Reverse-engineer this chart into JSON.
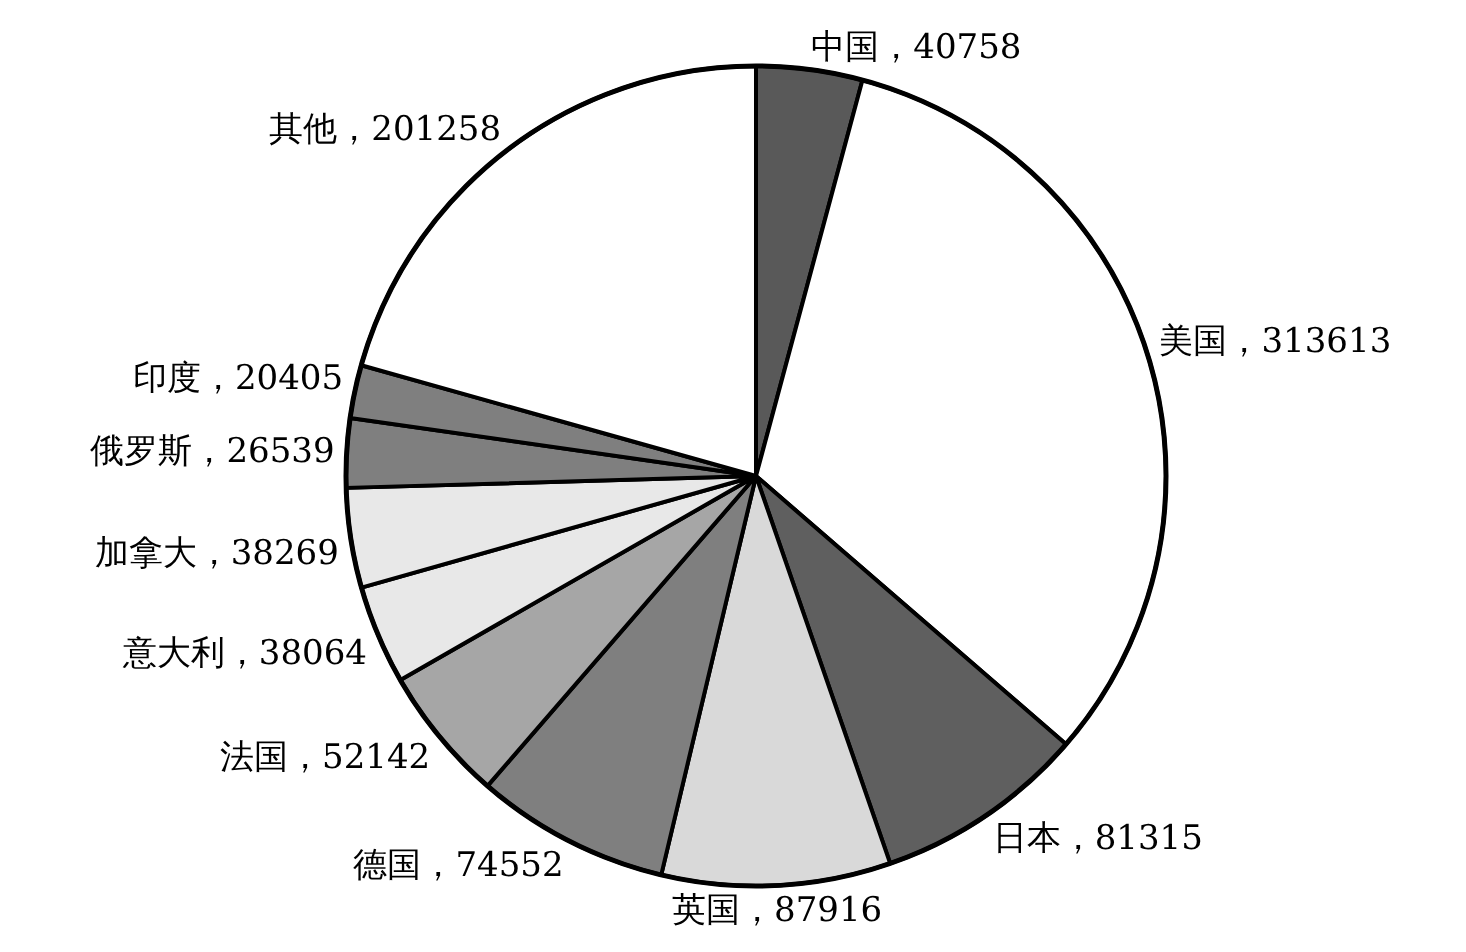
{
  "chart_data": {
    "type": "pie",
    "categories": [
      "中国",
      "美国",
      "日本",
      "英国",
      "德国",
      "法国",
      "意大利",
      "加拿大",
      "俄罗斯",
      "印度",
      "其他"
    ],
    "values": [
      40758,
      313613,
      81315,
      87916,
      74552,
      52142,
      38064,
      38269,
      26539,
      20405,
      201258
    ],
    "colors": [
      "#595959",
      "#ffffff",
      "#5f5f5f",
      "#d9d9d9",
      "#7f7f7f",
      "#a6a6a6",
      "#e8e8e8",
      "#e8e8e8",
      "#7f7f7f",
      "#7f7f7f",
      "#ffffff"
    ],
    "value_labels": [
      "，40758",
      "，313613",
      "，81315",
      "，87916",
      "，74552",
      "，52142",
      "，38064",
      "，38269",
      "，26539",
      "，20405",
      "，201258"
    ]
  }
}
